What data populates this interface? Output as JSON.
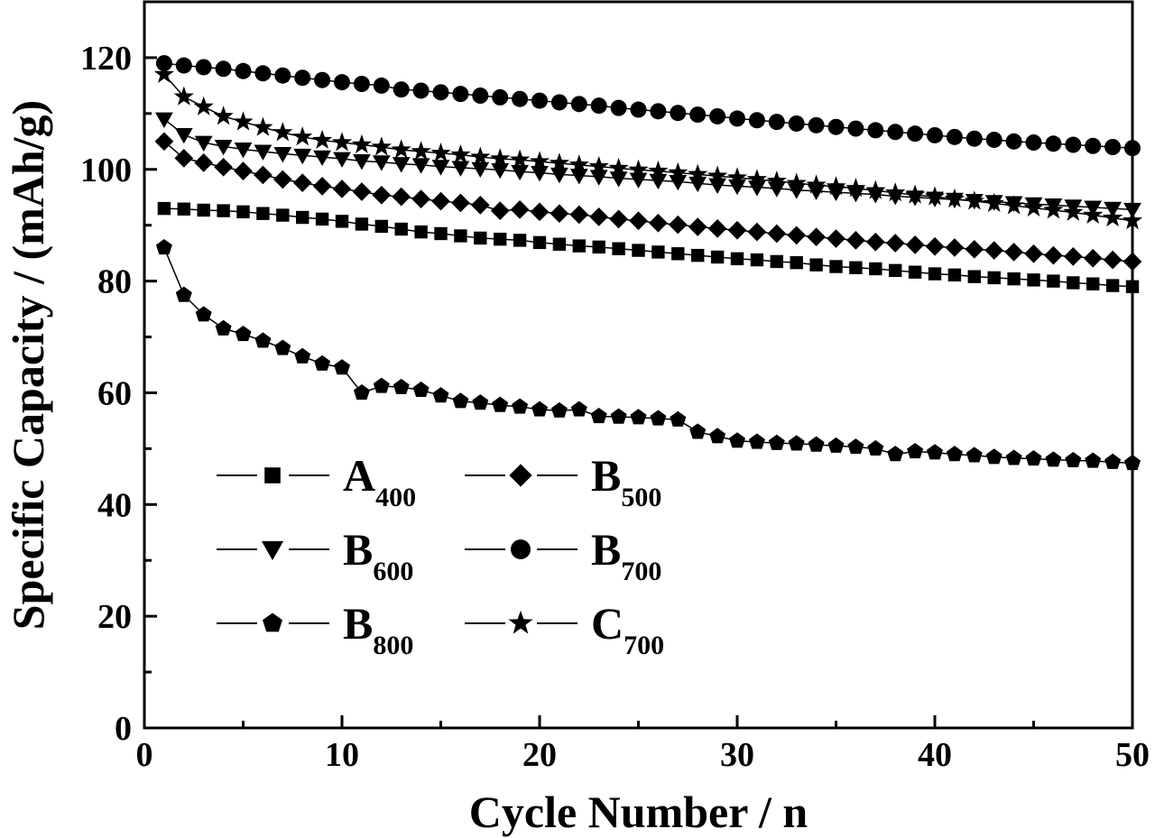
{
  "chart_data": {
    "type": "line",
    "xlabel": "Cycle Number / n",
    "ylabel": "Specific Capacity / (mAh/g)",
    "xlim": [
      0,
      50
    ],
    "ylim": [
      0,
      130
    ],
    "xticks": [
      0,
      10,
      20,
      30,
      40,
      50
    ],
    "yticks": [
      0,
      20,
      40,
      60,
      80,
      100,
      120
    ],
    "grid": false,
    "legend_position": "bottom-left",
    "color": "#000000",
    "series": [
      {
        "name": "A",
        "sub": "400",
        "marker": "square",
        "values": [
          93.0,
          92.9,
          92.7,
          92.6,
          92.4,
          92.1,
          91.8,
          91.4,
          91.1,
          90.7,
          90.2,
          89.8,
          89.3,
          88.8,
          88.5,
          88.1,
          87.7,
          87.5,
          87.3,
          86.9,
          86.6,
          86.3,
          86.1,
          85.8,
          85.5,
          85.2,
          84.9,
          84.6,
          84.3,
          84.0,
          83.8,
          83.5,
          83.3,
          82.9,
          82.6,
          82.4,
          82.2,
          81.9,
          81.6,
          81.3,
          81.1,
          80.8,
          80.6,
          80.4,
          80.2,
          80.0,
          79.7,
          79.5,
          79.2,
          79.0
        ]
      },
      {
        "name": "B",
        "sub": "500",
        "marker": "diamond",
        "values": [
          105.0,
          102.0,
          101.2,
          100.4,
          99.7,
          99.0,
          98.2,
          97.6,
          97.0,
          96.5,
          96.0,
          95.4,
          95.1,
          94.7,
          94.3,
          94.0,
          93.6,
          92.6,
          92.8,
          92.4,
          92.1,
          91.9,
          91.5,
          91.1,
          90.8,
          90.4,
          90.1,
          89.7,
          89.4,
          89.1,
          88.8,
          88.5,
          88.2,
          87.9,
          87.6,
          87.3,
          87.0,
          86.8,
          86.5,
          86.2,
          86.0,
          85.7,
          85.5,
          85.2,
          84.9,
          84.6,
          84.4,
          84.1,
          83.8,
          83.5
        ]
      },
      {
        "name": "B",
        "sub": "600",
        "marker": "triangle-down",
        "values": [
          109.0,
          106.2,
          104.8,
          104.1,
          103.6,
          103.2,
          102.8,
          102.5,
          102.2,
          101.9,
          101.5,
          101.3,
          101.0,
          100.8,
          100.5,
          100.3,
          100.1,
          99.9,
          99.6,
          99.4,
          99.1,
          98.9,
          98.7,
          98.4,
          98.2,
          98.0,
          97.8,
          97.5,
          97.2,
          97.0,
          96.8,
          96.6,
          96.3,
          96.1,
          95.9,
          95.7,
          95.5,
          95.2,
          95.0,
          94.8,
          94.6,
          94.4,
          94.2,
          94.0,
          93.8,
          93.6,
          93.4,
          93.2,
          93.0,
          92.8
        ]
      },
      {
        "name": "B",
        "sub": "700",
        "marker": "circle",
        "values": [
          119.0,
          118.6,
          118.3,
          118.0,
          117.6,
          117.2,
          116.8,
          116.4,
          116.0,
          115.6,
          115.3,
          115.0,
          114.3,
          114.1,
          113.8,
          113.5,
          113.2,
          112.9,
          112.6,
          112.3,
          112.0,
          111.7,
          111.4,
          111.0,
          110.7,
          110.4,
          110.1,
          109.8,
          109.5,
          109.1,
          108.8,
          108.5,
          108.2,
          107.9,
          107.6,
          107.3,
          107.0,
          106.7,
          106.4,
          106.1,
          105.8,
          105.5,
          105.3,
          105.0,
          104.8,
          104.6,
          104.4,
          104.2,
          104.0,
          103.8
        ]
      },
      {
        "name": "B",
        "sub": "800",
        "marker": "pentagon",
        "values": [
          86.0,
          77.5,
          74.0,
          71.5,
          70.5,
          69.3,
          68.0,
          66.5,
          65.2,
          64.5,
          60.0,
          61.2,
          61.0,
          60.5,
          59.5,
          58.5,
          58.2,
          57.8,
          57.5,
          57.0,
          56.8,
          57.0,
          55.8,
          55.7,
          55.6,
          55.4,
          55.2,
          53.0,
          52.2,
          51.4,
          51.2,
          51.0,
          50.9,
          50.7,
          50.5,
          50.3,
          50.0,
          49.0,
          49.5,
          49.3,
          49.0,
          48.8,
          48.5,
          48.3,
          48.2,
          48.0,
          47.9,
          47.8,
          47.6,
          47.4
        ]
      },
      {
        "name": "C",
        "sub": "700",
        "marker": "star",
        "values": [
          117.0,
          113.0,
          111.2,
          109.5,
          108.5,
          107.5,
          106.6,
          105.8,
          105.2,
          104.8,
          104.4,
          104.0,
          103.5,
          103.2,
          102.9,
          102.6,
          102.2,
          101.9,
          101.7,
          101.4,
          101.1,
          100.8,
          100.5,
          100.2,
          99.9,
          99.7,
          99.4,
          99.1,
          98.8,
          98.5,
          98.2,
          97.9,
          97.5,
          97.2,
          96.9,
          96.6,
          96.2,
          95.8,
          95.4,
          95.1,
          94.7,
          94.3,
          93.9,
          93.5,
          93.1,
          92.7,
          92.3,
          91.8,
          91.3,
          90.8
        ]
      }
    ]
  }
}
